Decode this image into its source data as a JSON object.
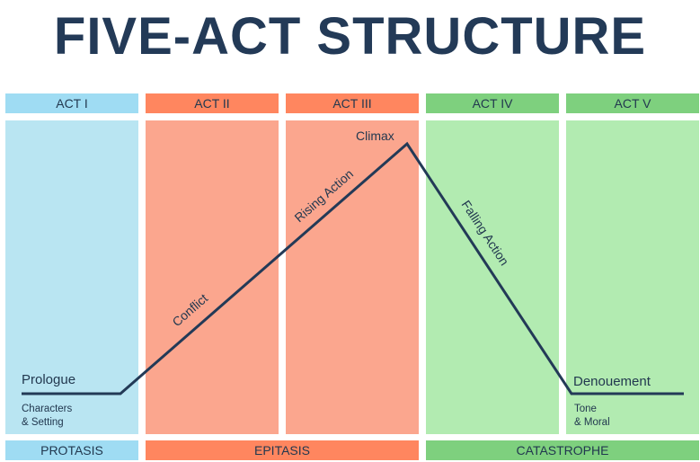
{
  "title": "FIVE-ACT STRUCTURE",
  "acts": [
    "ACT I",
    "ACT II",
    "ACT III",
    "ACT IV",
    "ACT V"
  ],
  "phases": [
    "PROTASIS",
    "EPITASIS",
    "CATASTROPHE"
  ],
  "labels": {
    "prologue": "Prologue",
    "characters_line1": "Characters",
    "characters_line2": "& Setting",
    "conflict": "Conflict",
    "rising_action": "Rising Action",
    "climax": "Climax",
    "falling_action": "Falling Action",
    "denouement": "Denouement",
    "tone_line1": "Tone",
    "tone_line2": "& Moral"
  },
  "colors": {
    "title": "#233a57",
    "line": "#233a57",
    "blue_header": "#9fdcf3",
    "blue_body": "#b9e5f2",
    "orange_header": "#ff865f",
    "orange_body": "#fba68e",
    "green_header": "#7ed07e",
    "green_body": "#b2ebb1"
  }
}
